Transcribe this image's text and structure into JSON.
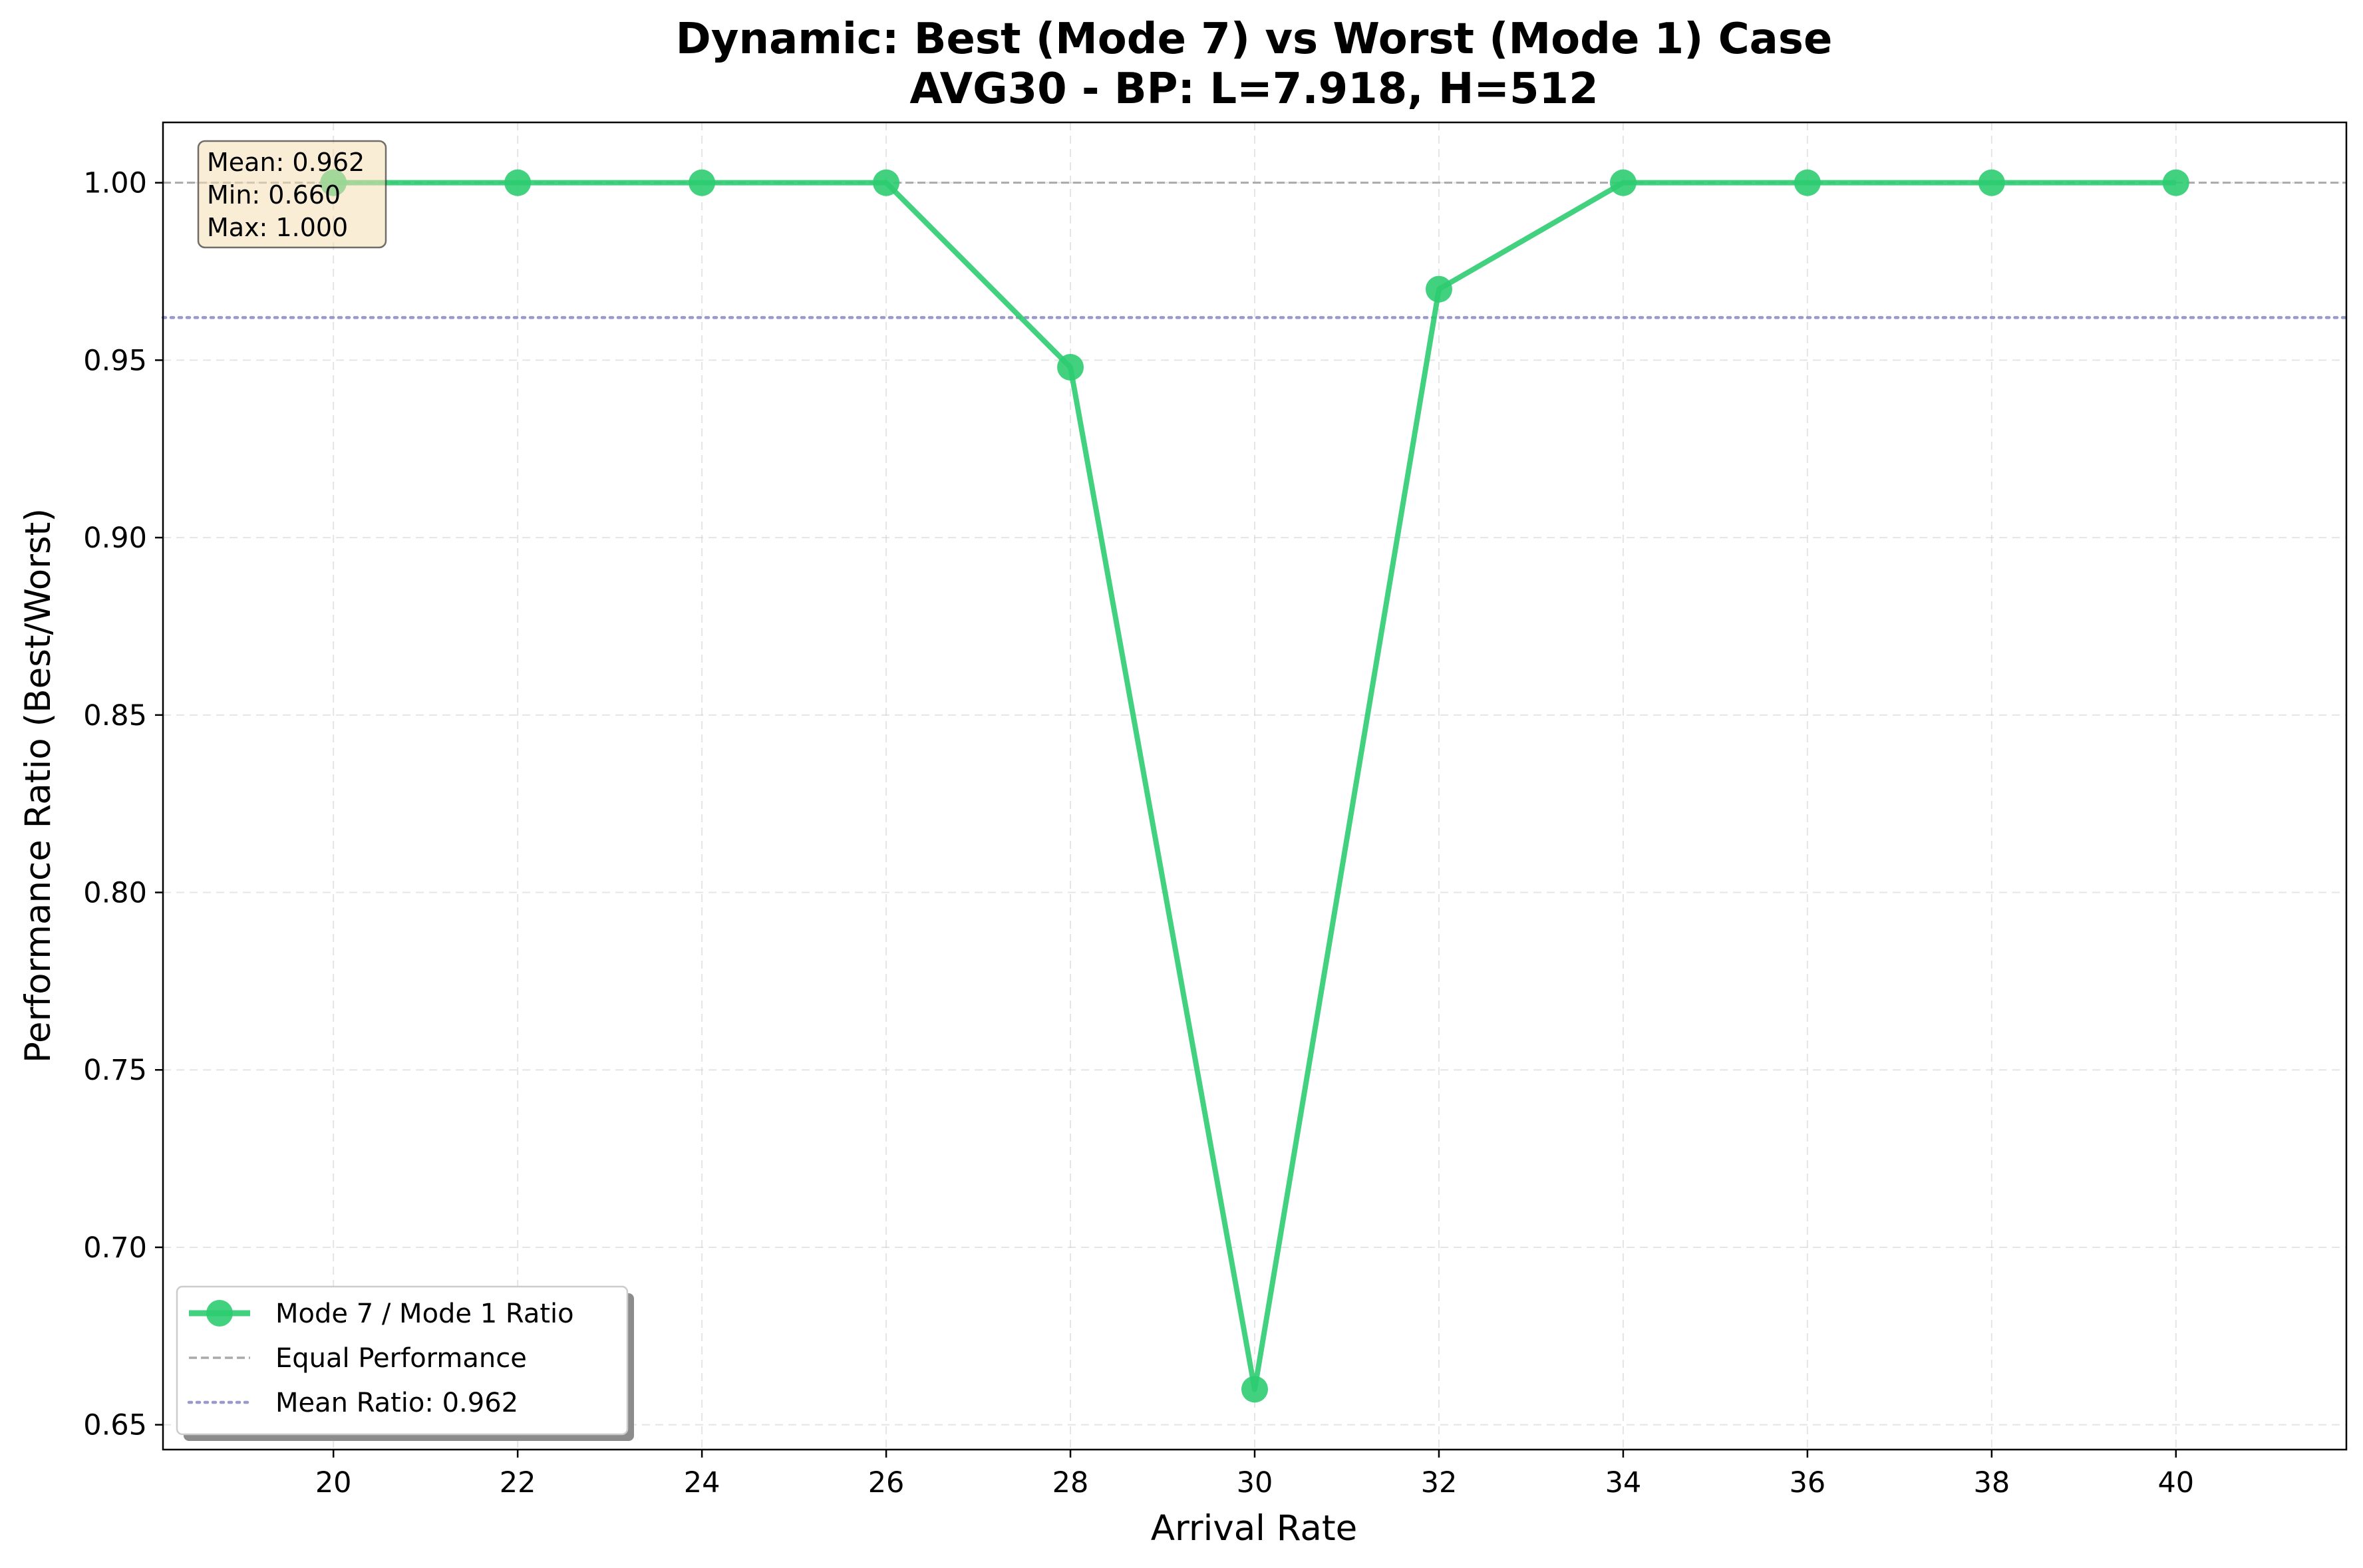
{
  "chart_data": {
    "type": "line",
    "title_line1": "Dynamic: Best (Mode 7) vs Worst (Mode 1) Case",
    "title_line2": "AVG30 - BP: L=7.918, H=512",
    "xlabel": "Arrival Rate",
    "ylabel": "Performance Ratio (Best/Worst)",
    "xlim": [
      18.15,
      41.85
    ],
    "ylim": [
      0.643,
      1.017
    ],
    "xticks": [
      20,
      22,
      24,
      26,
      28,
      30,
      32,
      34,
      36,
      38,
      40
    ],
    "xtick_labels": [
      "20",
      "22",
      "24",
      "26",
      "28",
      "30",
      "32",
      "34",
      "36",
      "38",
      "40"
    ],
    "yticks": [
      0.65,
      0.7,
      0.75,
      0.8,
      0.85,
      0.9,
      0.95,
      1.0
    ],
    "ytick_labels": [
      "0.65",
      "0.70",
      "0.75",
      "0.80",
      "0.85",
      "0.90",
      "0.95",
      "1.00"
    ],
    "grid": true,
    "series": [
      {
        "name": "Mode 7 / Mode 1 Ratio",
        "color": "#2ecc71",
        "x": [
          20,
          22,
          24,
          26,
          28,
          30,
          32,
          34,
          36,
          38,
          40
        ],
        "y": [
          1.0,
          1.0,
          1.0,
          1.0,
          0.948,
          0.66,
          0.97,
          1.0,
          1.0,
          1.0,
          1.0
        ]
      }
    ],
    "reference_lines": [
      {
        "name": "Equal Performance",
        "y": 1.0,
        "color": "#aaaaaa",
        "style": "dashed"
      },
      {
        "name": "Mean Ratio: 0.962",
        "y": 0.962,
        "color": "#9999cc",
        "style": "dotted"
      }
    ],
    "legend": {
      "placement": "lower-left",
      "entries": [
        "Mode 7 / Mode 1 Ratio",
        "Equal Performance",
        "Mean Ratio: 0.962"
      ]
    },
    "stats_box": {
      "placement": "top-left",
      "mean": "Mean: 0.962",
      "min": "Min: 0.660",
      "max": "Max: 1.000"
    }
  }
}
